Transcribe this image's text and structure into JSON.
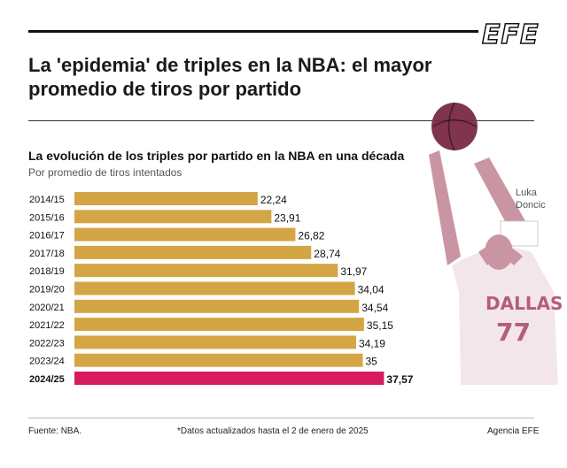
{
  "logo": "EFE",
  "headline": "La 'epidemia' de triples en la NBA: el mayor promedio de tiros por partido",
  "photo_credit": "Luka Doncic",
  "footer": {
    "source": "Fuente: NBA.",
    "note": "*Datos actualizados hasta el 2 de enero de 2025",
    "agency": "Agencia EFE"
  },
  "colors": {
    "bar": "#d4a545",
    "highlight": "#d81b60",
    "player_tint": "#8b3a52"
  },
  "chart_data": {
    "type": "bar",
    "orientation": "horizontal",
    "title": "La evolución de los triples por partido en la NBA en una década",
    "subtitle": "Por promedio de tiros intentados",
    "categories": [
      "2014/15",
      "2015/16",
      "2016/17",
      "2017/18",
      "2018/19",
      "2019/20",
      "2020/21",
      "2021/22",
      "2022/23",
      "2023/24",
      "2024/25"
    ],
    "values": [
      22.24,
      23.91,
      26.82,
      28.74,
      31.97,
      34.04,
      34.54,
      35.15,
      34.19,
      35,
      37.57
    ],
    "labels": [
      "22,24",
      "23,91",
      "26,82",
      "28,74",
      "31,97",
      "34,04",
      "34,54",
      "35,15",
      "34,19",
      "35",
      "37,57"
    ],
    "highlight_index": 10,
    "xlim": [
      0,
      40
    ]
  }
}
